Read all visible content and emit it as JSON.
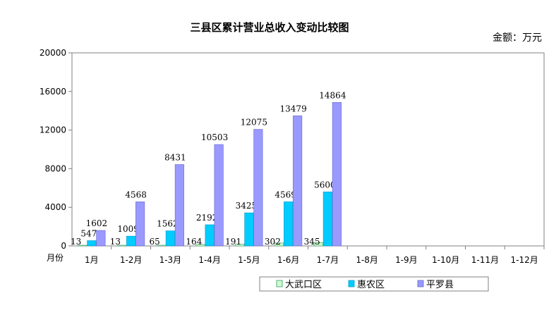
{
  "chart_data": {
    "type": "bar",
    "title": "三县区累计营业总收入变动比较图",
    "unit_label": "金额：万元",
    "xlabel": "月份",
    "ylabel": "",
    "ylim": [
      0,
      20000
    ],
    "yticks": [
      0,
      4000,
      8000,
      12000,
      16000,
      20000
    ],
    "grid": false,
    "legend_position": "bottom",
    "categories": [
      "1月",
      "1-2月",
      "1-3月",
      "1-4月",
      "1-5月",
      "1-6月",
      "1-7月",
      "1-8月",
      "1-9月",
      "1-10月",
      "1-11月",
      "1-12月"
    ],
    "series": [
      {
        "name": "大武口区",
        "color": "#ccffcc",
        "stroke": "#339966",
        "values": [
          13,
          13,
          65,
          164,
          191,
          302,
          345,
          null,
          null,
          null,
          null,
          null
        ]
      },
      {
        "name": "惠农区",
        "color": "#00ccff",
        "stroke": "#0099cc",
        "values": [
          547,
          1009,
          1562,
          2192,
          3425,
          4569,
          5600,
          null,
          null,
          null,
          null,
          null
        ]
      },
      {
        "name": "平罗县",
        "color": "#9999ff",
        "stroke": "#6666cc",
        "values": [
          1602,
          4568,
          8431,
          10503,
          12075,
          13479,
          14864,
          null,
          null,
          null,
          null,
          null
        ]
      }
    ]
  }
}
